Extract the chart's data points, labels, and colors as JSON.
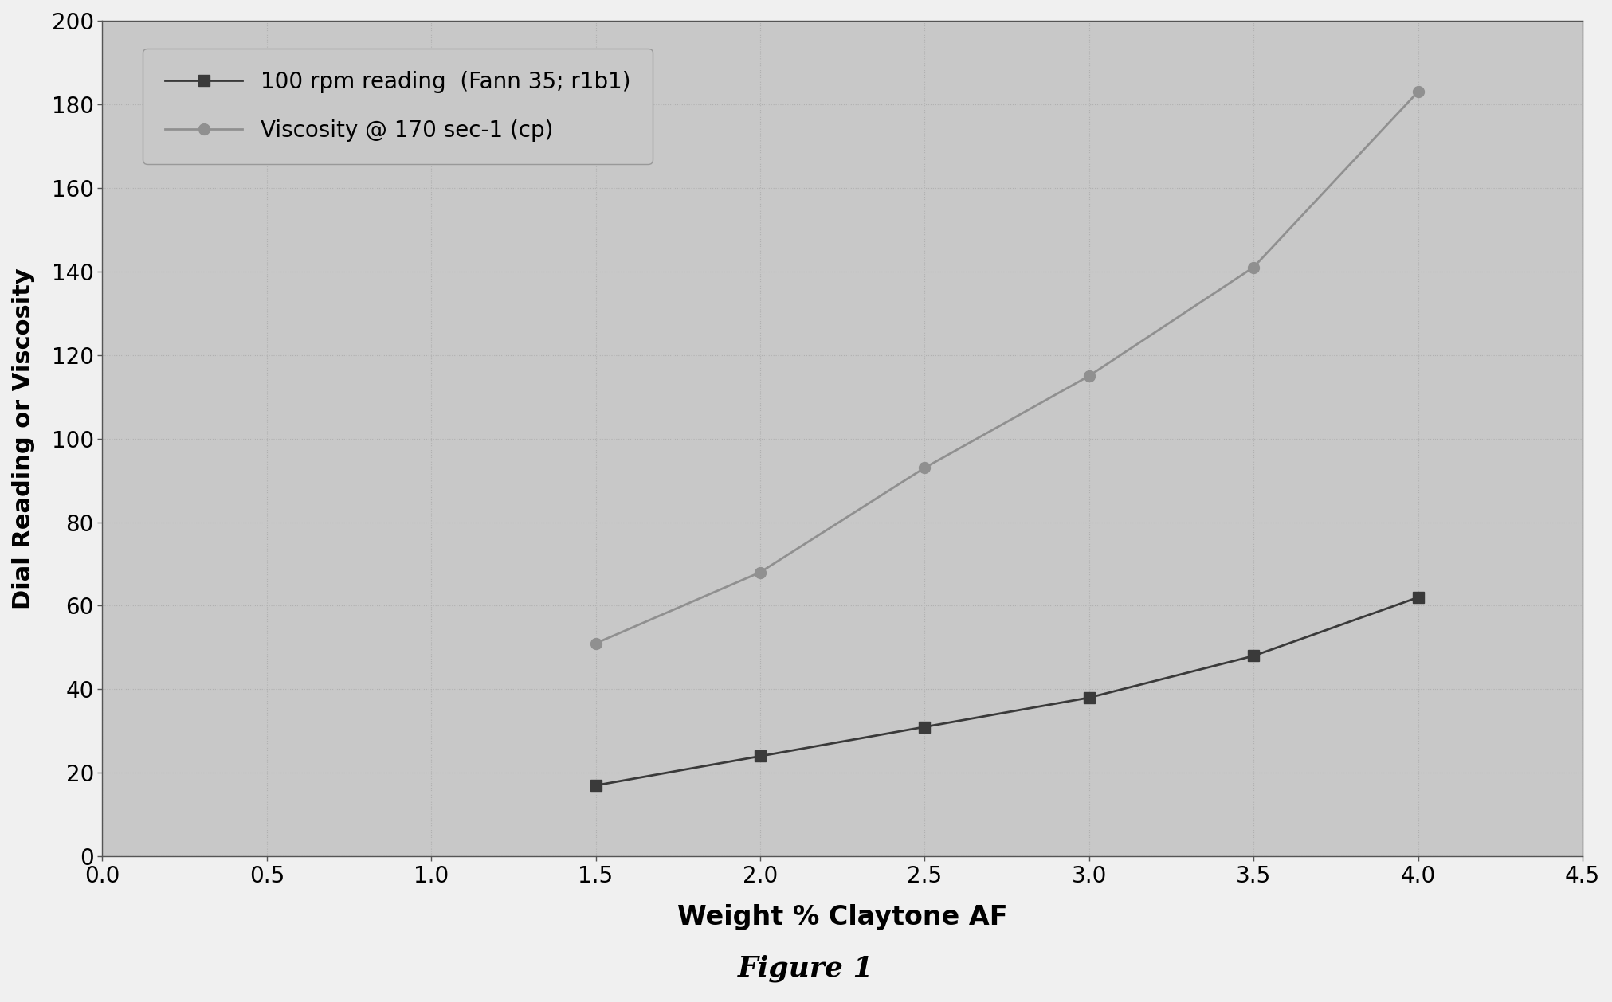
{
  "x_values": [
    1.5,
    2.0,
    2.5,
    3.0,
    3.5,
    4.0
  ],
  "series1_y": [
    17,
    24,
    31,
    38,
    48,
    62
  ],
  "series2_y": [
    51,
    68,
    93,
    115,
    141,
    183
  ],
  "series1_label": "100 rpm reading  (Fann 35; r1b1)",
  "series2_label": "Viscosity @ 170 sec-1 (cp)",
  "series1_color": "#3a3a3a",
  "series2_color": "#909090",
  "xlabel": "Weight % Claytone AF",
  "ylabel": "Dial Reading or Viscosity",
  "figure_label": "Figure 1",
  "xlim": [
    0.0,
    4.5
  ],
  "ylim": [
    0,
    200
  ],
  "xticks": [
    0.0,
    0.5,
    1.0,
    1.5,
    2.0,
    2.5,
    3.0,
    3.5,
    4.0,
    4.5
  ],
  "yticks": [
    0,
    20,
    40,
    60,
    80,
    100,
    120,
    140,
    160,
    180,
    200
  ],
  "plot_bg_color": "#c8c8c8",
  "fig_bg_color": "#f0f0f0"
}
